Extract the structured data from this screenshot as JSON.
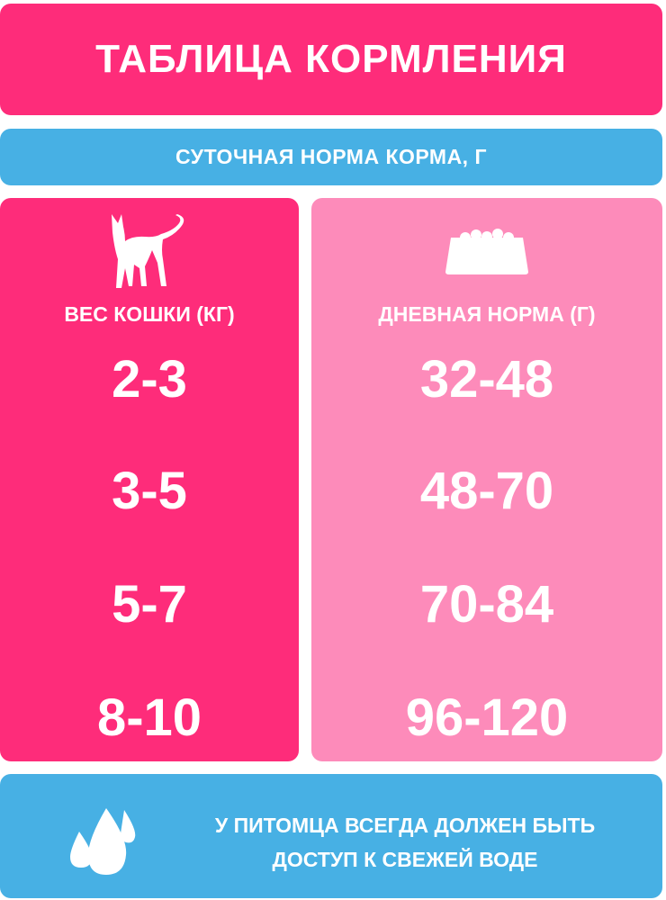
{
  "title": "ТАБЛИЦА КОРМЛЕНИЯ",
  "subtitle": "СУТОЧНАЯ НОРМА КОРМА, Г",
  "colors": {
    "pink": "#fe2c7a",
    "light_pink": "#fd8bba",
    "blue": "#47b0e4"
  },
  "left": {
    "icon": "cat-icon",
    "header": "ВЕС КОШКИ (КГ)",
    "values": [
      "2-3",
      "3-5",
      "5-7",
      "8-10"
    ]
  },
  "right": {
    "icon": "food-bowl-icon",
    "header": "ДНЕВНАЯ НОРМА (Г)",
    "values": [
      "32-48",
      "48-70",
      "70-84",
      "96-120"
    ]
  },
  "water": {
    "icon": "water-drops-icon",
    "line1": "У ПИТОМЦА ВСЕГДА ДОЛЖЕН БЫТЬ",
    "line2": "ДОСТУП К СВЕЖЕЙ ВОДЕ"
  }
}
